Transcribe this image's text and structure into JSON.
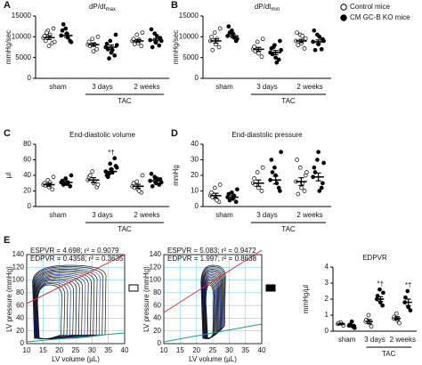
{
  "legend": [
    {
      "label": "Control mice",
      "fill": "#ffffff"
    },
    {
      "label": "CM GC-B KO mice",
      "fill": "#000000"
    }
  ],
  "chart_data": [
    {
      "type": "dot",
      "panel": "A",
      "title": "dP/dt",
      "title_sub": "max",
      "ylabel": "mmHg/sec",
      "ylim": [
        0,
        15000
      ],
      "yticks": [
        0,
        5000,
        10000,
        15000
      ],
      "categories": [
        "sham",
        "3 days",
        "2 weeks"
      ],
      "group_label": "TAC",
      "series": [
        {
          "fill": "#ffffff",
          "values": [
            9800,
            8100,
            9000
          ],
          "errors": [
            450,
            400,
            350
          ],
          "points": [
            [
              9800,
              11500,
              8500,
              10200,
              7800,
              12000,
              9000,
              10500,
              8800,
              11000
            ],
            [
              8100,
              9500,
              7000,
              8800,
              6500,
              10000,
              7800,
              8200
            ],
            [
              9000,
              10500,
              7800,
              9500,
              8500,
              11000,
              8200,
              9300
            ]
          ]
        },
        {
          "fill": "#000000",
          "values": [
            10300,
            7500,
            9200
          ],
          "errors": [
            450,
            500,
            400
          ],
          "points": [
            [
              10300,
              12000,
              9000,
              11500,
              10800,
              8700,
              13000,
              9800
            ],
            [
              7500,
              9000,
              5500,
              8300,
              6200,
              10500,
              7000,
              6800,
              8000,
              4800
            ],
            [
              9200,
              10800,
              7900,
              11800,
              8600,
              9700,
              7500,
              10200,
              9000
            ]
          ]
        }
      ]
    },
    {
      "type": "dot",
      "panel": "B",
      "title": "dP/dt",
      "title_sub": "min",
      "ylabel": "mmHg/sec",
      "ylim": [
        0,
        15000
      ],
      "yticks": [
        0,
        5000,
        10000,
        15000
      ],
      "categories": [
        "sham",
        "3 days",
        "2 weeks"
      ],
      "group_label": "TAC",
      "series": [
        {
          "fill": "#ffffff",
          "values": [
            9000,
            7000,
            9000
          ],
          "errors": [
            500,
            450,
            400
          ],
          "points": [
            [
              9000,
              11000,
              7500,
              10000,
              8200,
              12000,
              6800,
              9500
            ],
            [
              7000,
              8800,
              5200,
              7600,
              6000,
              9500,
              6500
            ],
            [
              9000,
              10500,
              7200,
              11000,
              8400,
              9600,
              8000,
              10200
            ]
          ]
        },
        {
          "fill": "#000000",
          "values": [
            10200,
            6200,
            8800
          ],
          "errors": [
            400,
            500,
            450
          ],
          "points": [
            [
              10200,
              11500,
              9000,
              12500,
              10800,
              9500,
              11000,
              9800
            ],
            [
              6200,
              8000,
              4500,
              7200,
              5000,
              9000,
              5800,
              3800,
              6800,
              7500
            ],
            [
              8800,
              10500,
              7000,
              11500,
              8200,
              9400,
              6800,
              10000,
              9000
            ]
          ]
        }
      ]
    },
    {
      "type": "dot",
      "panel": "C",
      "title": "End-diastolic volume",
      "ylabel": "µl",
      "ylim": [
        0,
        80
      ],
      "yticks": [
        0,
        20,
        40,
        60,
        80
      ],
      "categories": [
        "sham",
        "3 days",
        "2 weeks"
      ],
      "group_label": "TAC",
      "series": [
        {
          "fill": "#ffffff",
          "values": [
            28,
            34,
            26
          ],
          "errors": [
            2,
            3,
            2.5
          ],
          "points": [
            [
              28,
              34,
              22,
              30,
              25,
              38,
              27,
              31
            ],
            [
              34,
              45,
              25,
              38,
              30,
              28,
              40,
              32
            ],
            [
              26,
              32,
              18,
              30,
              22,
              40,
              24,
              20
            ]
          ]
        },
        {
          "fill": "#000000",
          "values": [
            31,
            45,
            33
          ],
          "errors": [
            2,
            3,
            2
          ],
          "annotations": [
            null,
            "*†",
            null
          ],
          "points": [
            [
              31,
              36,
              26,
              33,
              29,
              40,
              28,
              30
            ],
            [
              45,
              55,
              62,
              40,
              48,
              52,
              38,
              44,
              50,
              42
            ],
            [
              33,
              38,
              28,
              42,
              30,
              35,
              26,
              36,
              31
            ]
          ]
        }
      ]
    },
    {
      "type": "dot",
      "panel": "D",
      "title": "End-diastolic pressure",
      "ylabel": "mmHg",
      "ylim": [
        0,
        40
      ],
      "yticks": [
        0,
        10,
        20,
        30,
        40
      ],
      "categories": [
        "sham",
        "3 days",
        "2 weeks"
      ],
      "group_label": "TAC",
      "series": [
        {
          "fill": "#ffffff",
          "values": [
            7,
            15,
            16
          ],
          "errors": [
            1.5,
            2,
            2.5
          ],
          "points": [
            [
              7,
              12,
              3,
              9,
              5,
              14,
              6,
              4
            ],
            [
              15,
              22,
              10,
              18,
              12,
              25,
              14
            ],
            [
              16,
              25,
              10,
              30,
              12,
              20,
              8,
              15,
              22
            ]
          ]
        },
        {
          "fill": "#000000",
          "values": [
            6,
            17,
            19
          ],
          "errors": [
            1,
            2.5,
            2.5
          ],
          "points": [
            [
              6,
              9,
              3,
              8,
              5,
              11,
              4,
              7
            ],
            [
              17,
              25,
              12,
              30,
              20,
              10,
              22,
              15,
              35
            ],
            [
              19,
              30,
              12,
              25,
              35,
              15,
              22,
              10,
              28
            ]
          ]
        }
      ]
    },
    {
      "type": "pv-loop",
      "panel": "E",
      "xlabel": "LV volume (µL)",
      "ylabel": "LV pressure (mmHg)",
      "xlim": [
        10,
        40
      ],
      "xticks": [
        10,
        15,
        20,
        25,
        30,
        35,
        40
      ],
      "ylim": [
        0,
        140
      ],
      "yticks": [
        0,
        20,
        40,
        60,
        80,
        100,
        120,
        140
      ],
      "legend_fill": "#ffffff",
      "annotations": [
        {
          "text": "ESPVR = 4.698; r² = 0.9079",
          "color": "#e03030"
        },
        {
          "text": "EDPVR = 0.4358; r² = 0.3635",
          "color": "#2040c0"
        }
      ]
    },
    {
      "type": "pv-loop",
      "xlabel": "LV volume (µL)",
      "ylabel": "LV pressure (mmHg)",
      "xlim": [
        10,
        40
      ],
      "xticks": [
        10,
        15,
        20,
        25,
        30,
        35,
        40
      ],
      "ylim": [
        0,
        140
      ],
      "yticks": [
        0,
        20,
        40,
        60,
        80,
        100,
        120,
        140
      ],
      "legend_fill": "#000000",
      "annotations": [
        {
          "text": "ESPVR = 5.083; r² = 0.9472",
          "color": "#e03030"
        },
        {
          "text": "EDPVR = 1.997; r² = 0.8638",
          "color": "#2040c0"
        }
      ]
    },
    {
      "type": "dot",
      "title": "EDPVR",
      "ylabel": "mmHg/µl",
      "ylim": [
        0,
        4
      ],
      "yticks": [
        0,
        1,
        2,
        3,
        4
      ],
      "categories": [
        "sham",
        "3 days",
        "2 weeks"
      ],
      "group_label": "TAC",
      "series": [
        {
          "fill": "#ffffff",
          "values": [
            0.45,
            0.6,
            0.8
          ],
          "errors": [
            0.05,
            0.12,
            0.1
          ],
          "points": [
            [
              0.45,
              0.55,
              0.35,
              0.5
            ],
            [
              0.6,
              1.0,
              0.3,
              0.7,
              0.5
            ],
            [
              0.8,
              1.1,
              0.5,
              0.9,
              0.7
            ]
          ]
        },
        {
          "fill": "#000000",
          "values": [
            0.35,
            2.0,
            1.8
          ],
          "errors": [
            0.07,
            0.15,
            0.2
          ],
          "annotations": [
            null,
            "*†",
            "*†"
          ],
          "points": [
            [
              0.35,
              0.6,
              0.2,
              0.4,
              0.3
            ],
            [
              2.0,
              2.6,
              1.6,
              2.2,
              1.8,
              2.4
            ],
            [
              1.8,
              2.5,
              1.3,
              2.1,
              1.5
            ]
          ]
        }
      ]
    }
  ]
}
